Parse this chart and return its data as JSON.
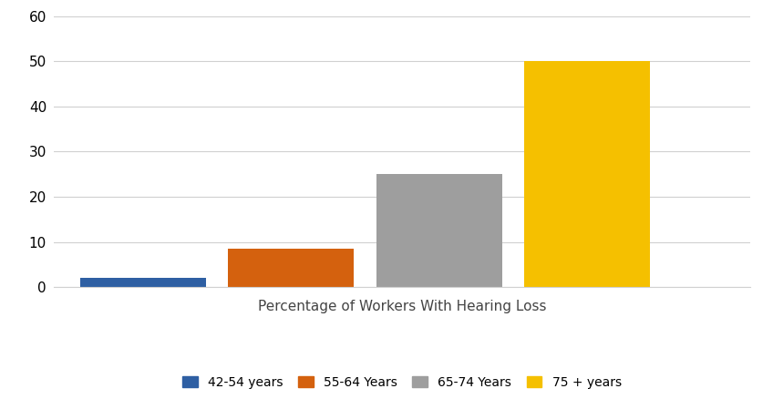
{
  "categories": [
    "42-54 years",
    "55-64 Years",
    "65-74 Years",
    "75 + years"
  ],
  "values": [
    2,
    8.5,
    25,
    50
  ],
  "bar_colors": [
    "#2e5fa3",
    "#d4610e",
    "#9e9e9e",
    "#f5c000"
  ],
  "xlabel": "Percentage of Workers With Hearing Loss",
  "xlabel_fontsize": 11,
  "ylim": [
    0,
    60
  ],
  "yticks": [
    0,
    10,
    20,
    30,
    40,
    50,
    60
  ],
  "background_color": "#ffffff",
  "grid_color": "#d0d0d0",
  "legend_labels": [
    "42-54 years",
    "55-64 Years",
    "65-74 Years",
    "75 + years"
  ],
  "bar_width": 0.85,
  "x_positions": [
    1,
    2,
    3,
    4
  ],
  "xlim": [
    0.4,
    5.1
  ],
  "figsize": [
    8.48,
    4.38
  ],
  "dpi": 100
}
